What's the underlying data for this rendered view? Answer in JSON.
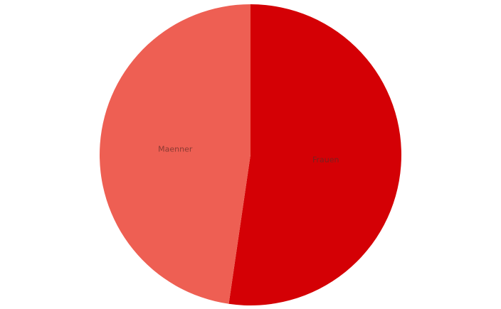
{
  "chart_data": {
    "type": "pie",
    "title": "",
    "slices": [
      {
        "label": "Frauen",
        "value": 52.3,
        "color": "#d40005",
        "label_color": "#7a2020"
      },
      {
        "label": "Maenner",
        "value": 47.7,
        "color": "#ee5f53",
        "label_color": "#8a3a32"
      }
    ],
    "start_angle_deg": 0,
    "direction": "clockwise",
    "legend": "none",
    "labels_inside": true
  }
}
